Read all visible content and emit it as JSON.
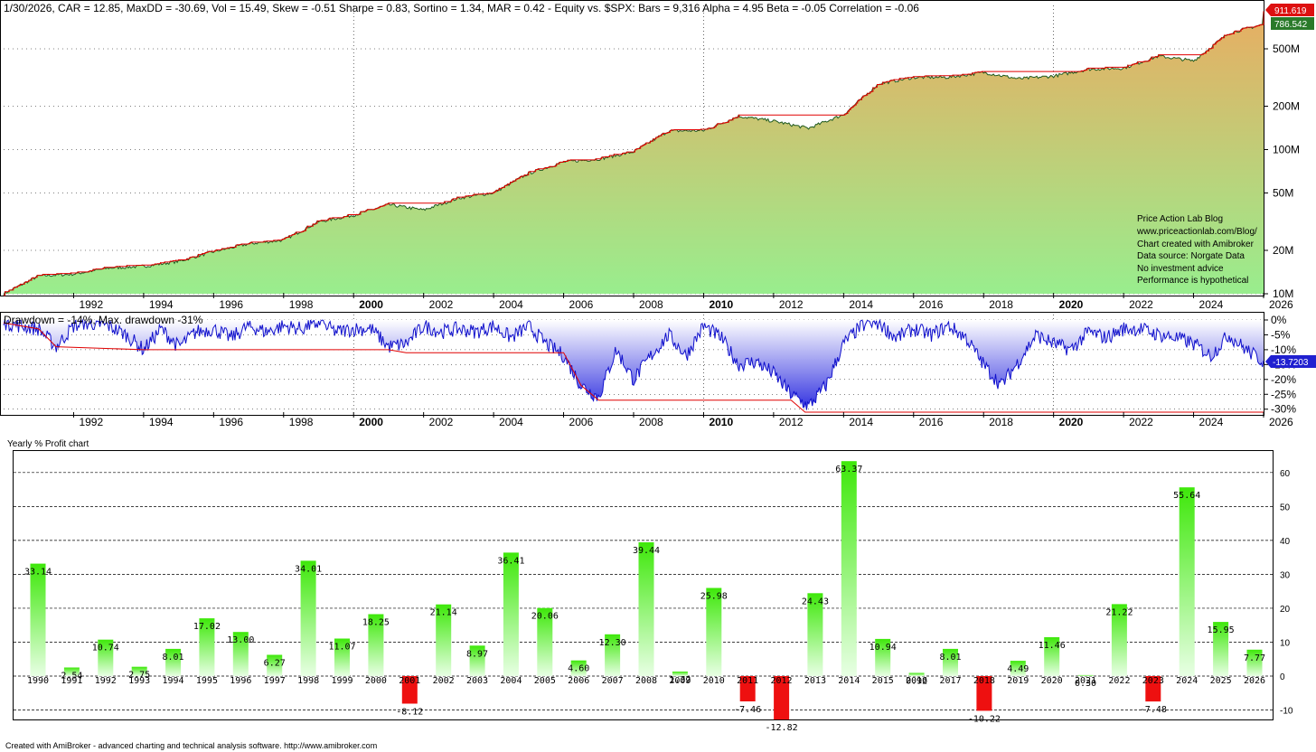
{
  "colors": {
    "equity_top": "#e8ad62",
    "equity_bottom": "#98ee8e",
    "equity_line": "#1f5a1f",
    "highwater": "#e00000",
    "drawdown_line": "#1010cc",
    "drawdown_fill_top": "#ffffff",
    "drawdown_fill_bottom": "#3030e0",
    "bar_pos_top": "#3ee80a",
    "bar_pos_bottom": "#e8ffe4",
    "bar_neg": "#ee1010",
    "grid": "#000000"
  },
  "equity_panel": {
    "header": "1/30/2026, CAR = 12.85, MaxDD = -30.69, Vol = 15.49, Skew = -0.51 Sharpe = 0.83, Sortino = 1.34, MAR = 0.42 - Equity vs. $SPX:  Bars = 9,316 Alpha = 4.95 Beta = -0.05 Correlation = -0.06",
    "y_ticks": [
      "500M",
      "200M",
      "100M",
      "50M",
      "20M",
      "10M"
    ],
    "price_tags": {
      "top": "911.619",
      "second": "786.542"
    },
    "annotation": [
      "Price Action Lab Blog",
      "www.priceactionlab.com/Blog/",
      "Chart created with Amibroker",
      "Data source: Norgate Data",
      "No investment advice",
      "Performance is hypothetical"
    ]
  },
  "drawdown_panel": {
    "header": "Drawdown = -14%, Max. drawdown -31%",
    "y_ticks": [
      "0%",
      "-5%",
      "-10%",
      "-15%",
      "-20%",
      "-25%",
      "-30%"
    ],
    "current_tag": "-13.7203"
  },
  "x_axis_years": [
    "1992",
    "1994",
    "1996",
    "1998",
    "2000",
    "2002",
    "2004",
    "2006",
    "2008",
    "2010",
    "2012",
    "2014",
    "2016",
    "2018",
    "2020",
    "2022",
    "2024",
    "2026"
  ],
  "x_axis_bold": [
    "2000",
    "2010",
    "2020"
  ],
  "chart_data": [
    {
      "type": "area",
      "description_key": "equity",
      "y_scale": "log",
      "ylim": [
        10,
        1000
      ],
      "y_unit": "M",
      "x_range": [
        "1990",
        "2026"
      ],
      "x": [
        1990.0,
        1991.0,
        1992.0,
        1993.0,
        1994.0,
        1995.0,
        1996.0,
        1997.0,
        1998.0,
        1999.0,
        2000.0,
        2001.0,
        2002.0,
        2003.0,
        2004.0,
        2005.0,
        2006.0,
        2007.0,
        2008.0,
        2009.0,
        2010.0,
        2011.0,
        2012.0,
        2013.0,
        2014.0,
        2015.0,
        2016.0,
        2017.0,
        2018.0,
        2019.0,
        2020.0,
        2021.0,
        2022.0,
        2023.0,
        2024.0,
        2025.0,
        2026.0
      ],
      "y": [
        10,
        13.3,
        13.7,
        15.1,
        15.5,
        16.8,
        19.6,
        22.2,
        23.6,
        31.6,
        35.1,
        41.5,
        38.1,
        46.1,
        50.2,
        68.4,
        82.1,
        86.0,
        96.6,
        134.7,
        135.4,
        170.6,
        157.5,
        140.6,
        175.0,
        285.8,
        316.7,
        317.6,
        343.1,
        309.7,
        323.6,
        361.2,
        367.5,
        445.6,
        412.2,
        641.5,
        740.0
      ],
      "end_value": 911.619
    },
    {
      "type": "area",
      "description_key": "drawdown",
      "ylim": [
        -31,
        0
      ],
      "y_unit": "%",
      "max_drawdown": -31,
      "current": -13.7203,
      "x": [
        1990.0,
        1990.5,
        1991.0,
        1991.5,
        1992.0,
        1992.5,
        1993.0,
        1993.5,
        1994.0,
        1994.5,
        1995.0,
        1995.5,
        1996.0,
        1996.5,
        1997.0,
        1997.5,
        1998.0,
        1998.5,
        1999.0,
        1999.5,
        2000.0,
        2000.5,
        2001.0,
        2001.5,
        2002.0,
        2002.5,
        2003.0,
        2003.5,
        2004.0,
        2004.5,
        2005.0,
        2005.5,
        2006.0,
        2006.5,
        2007.0,
        2007.5,
        2008.0,
        2008.5,
        2009.0,
        2009.5,
        2010.0,
        2010.5,
        2011.0,
        2011.5,
        2012.0,
        2012.5,
        2013.0,
        2013.5,
        2014.0,
        2014.5,
        2015.0,
        2015.5,
        2016.0,
        2016.5,
        2017.0,
        2017.5,
        2018.0,
        2018.5,
        2019.0,
        2019.5,
        2020.0,
        2020.5,
        2021.0,
        2021.5,
        2022.0,
        2022.5,
        2023.0,
        2023.5,
        2024.0,
        2024.5,
        2025.0,
        2025.5,
        2026.0
      ],
      "y": [
        -1,
        -2,
        -3,
        -9,
        -2,
        -1,
        -2,
        -5,
        -10,
        -3,
        -9,
        -4,
        -3,
        -6,
        -2,
        -4,
        -2,
        -3,
        -1,
        -4,
        -3,
        -3,
        -9,
        -8,
        -2,
        -4,
        -3,
        -4,
        -2,
        -6,
        -2,
        -8,
        -12,
        -22,
        -26,
        -10,
        -20,
        -12,
        -5,
        -12,
        -2,
        -6,
        -15,
        -14,
        -18,
        -25,
        -29,
        -22,
        -8,
        -2,
        -1,
        -6,
        -3,
        -5,
        -2,
        -6,
        -15,
        -22,
        -14,
        -5,
        -8,
        -10,
        -4,
        -6,
        -3,
        -3,
        -5,
        -6,
        -8,
        -12,
        -5,
        -10,
        -14
      ],
      "maxdd_envelope": [
        [
          1990.0,
          -1
        ],
        [
          1991.0,
          -3
        ],
        [
          1991.5,
          -9
        ],
        [
          1994.0,
          -10
        ],
        [
          1994.5,
          -10
        ],
        [
          2000.0,
          -10
        ],
        [
          2001.0,
          -10
        ],
        [
          2001.5,
          -11
        ],
        [
          2006.0,
          -11
        ],
        [
          2006.5,
          -22
        ],
        [
          2007.0,
          -27
        ],
        [
          2012.5,
          -27
        ],
        [
          2012.9,
          -31
        ],
        [
          2026.0,
          -31
        ]
      ]
    },
    {
      "type": "bar",
      "title": "Yearly % Profit chart",
      "categories": [
        "1990",
        "1991",
        "1992",
        "1993",
        "1994",
        "1995",
        "1996",
        "1997",
        "1998",
        "1999",
        "2000",
        "2001",
        "2002",
        "2003",
        "2004",
        "2005",
        "2006",
        "2007",
        "2008",
        "2009",
        "2010",
        "2011",
        "2012",
        "2013",
        "2014",
        "2015",
        "2016",
        "2017",
        "2018",
        "2019",
        "2020",
        "2021",
        "2022",
        "2023",
        "2024",
        "2025",
        "2026"
      ],
      "values": [
        33.14,
        2.54,
        10.74,
        2.75,
        8.01,
        17.02,
        13.0,
        6.27,
        34.01,
        11.07,
        18.25,
        -8.12,
        21.14,
        8.97,
        36.41,
        20.06,
        4.6,
        12.3,
        39.44,
        1.32,
        25.98,
        -7.46,
        -12.82,
        24.43,
        63.37,
        10.94,
        0.92,
        8.01,
        -10.22,
        4.49,
        11.46,
        0.3,
        21.22,
        -7.48,
        55.64,
        15.95,
        7.77
      ],
      "value_labels": [
        "33.14",
        "2.54",
        "10.74",
        "2.75",
        "8.01",
        "17.02",
        "13.00",
        "6.27",
        "34.01",
        "11.07",
        "18.25",
        "-8.12",
        "21.14",
        "8.97",
        "36.41",
        "20.06",
        "4.60",
        "12.30",
        "39.44",
        "1.32",
        "25.98",
        "-7.46",
        "-12.82",
        "24.43",
        "63.37",
        "10.94",
        "0.92",
        "8.01",
        "-10.22",
        "4.49",
        "11.46",
        "0.30",
        "21.22",
        "-7.48",
        "55.64",
        "15.95",
        "7.77"
      ],
      "y_ticks": [
        "60",
        "50",
        "40",
        "30",
        "20",
        "10",
        "0",
        "-10"
      ],
      "ylim": [
        -11,
        65
      ]
    }
  ],
  "footer": "Created with AmiBroker - advanced charting and technical analysis software. http://www.amibroker.com"
}
